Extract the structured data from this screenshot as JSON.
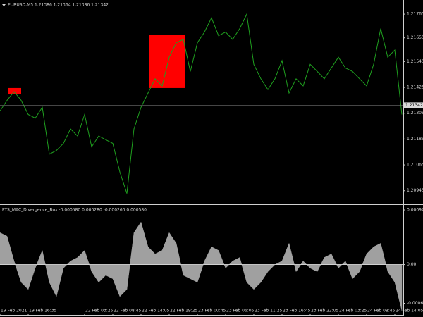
{
  "chart_data": [
    {
      "type": "line",
      "title": "EURUSD,M5  1.21386 1.21364 1.21386 1.21342",
      "color": "#1fa01f",
      "categories": [
        "19 Feb 2021",
        null,
        null,
        null,
        "19 Feb 16:35",
        null,
        null,
        null,
        null,
        null,
        null,
        null,
        "22 Feb 03:25",
        null,
        null,
        null,
        "22 Feb 08:45",
        null,
        null,
        null,
        "22 Feb 14:05",
        null,
        null,
        null,
        "22 Feb 19:25",
        null,
        null,
        null,
        "23 Feb 00:45",
        null,
        null,
        null,
        "23 Feb 06:05",
        null,
        null,
        null,
        "23 Feb 11:25",
        null,
        null,
        null,
        "23 Feb 16:45",
        null,
        null,
        null,
        "23 Feb 22:05",
        null,
        null,
        null,
        "24 Feb 03:25",
        null,
        null,
        null,
        "24 Feb 08:45",
        null,
        null,
        null,
        "24 Feb 14:05",
        null
      ],
      "values": [
        1.21315,
        1.21365,
        1.21405,
        1.21365,
        1.21299,
        1.21282,
        1.21332,
        1.21115,
        1.21132,
        1.21165,
        1.21232,
        1.21199,
        1.21299,
        1.21149,
        1.21199,
        1.21182,
        1.21165,
        1.21032,
        1.20932,
        1.21232,
        1.21332,
        1.21399,
        1.21465,
        1.21432,
        1.21565,
        1.21632,
        1.21648,
        1.21499,
        1.21632,
        1.21682,
        1.21748,
        1.21665,
        1.21682,
        1.21648,
        1.21698,
        1.21765,
        1.21532,
        1.21465,
        1.21415,
        1.21465,
        1.21549,
        1.21399,
        1.21465,
        1.21432,
        1.21532,
        1.21499,
        1.21465,
        1.21515,
        1.21565,
        1.21515,
        1.21499,
        1.21465,
        1.21432,
        1.21532,
        1.21698,
        1.21565,
        1.21598,
        1.21299
      ],
      "ylim": [
        1.20882,
        1.21798
      ],
      "yticks": [
        1.21765,
        1.21655,
        1.21545,
        1.21425,
        1.21305,
        1.21185,
        1.21065,
        1.20945
      ],
      "current_price": 1.21342,
      "boxes": [
        {
          "x": [
            1.2,
            3
          ],
          "y": [
            1.21395,
            1.21422
          ],
          "color": "#ff0000"
        },
        {
          "x": [
            21.2,
            26.2
          ],
          "y": [
            1.21422,
            1.21668
          ],
          "color": "#ff0000"
        }
      ]
    },
    {
      "type": "area",
      "title": "FTS_MAC_Divergence_Box -0.000580 0.000280 -0.000260 0.000580",
      "color": "#a0a0a0",
      "values": [
        0.00054,
        0.00048,
        6e-05,
        -0.0003,
        -0.00042,
        -6e-05,
        0.00024,
        -0.0003,
        -0.00054,
        -6e-05,
        6e-05,
        0.00012,
        0.00024,
        -0.00012,
        -0.0003,
        -0.00018,
        -0.00024,
        -0.00054,
        -0.00042,
        0.00054,
        0.00072,
        0.0003,
        0.00018,
        0.00024,
        0.00054,
        0.00036,
        -0.00018,
        -0.00024,
        -0.0003,
        6e-05,
        0.0003,
        0.00024,
        -6e-05,
        6e-05,
        0.00012,
        -0.0003,
        -0.00042,
        -0.0003,
        -0.00012,
        0,
        6e-05,
        0.00036,
        -0.00012,
        6e-05,
        -6e-05,
        -0.00012,
        0.00012,
        0.00018,
        -6e-05,
        6e-05,
        -0.00024,
        -0.00012,
        0.00018,
        0.0003,
        0.00036,
        -0.00012,
        -0.0003,
        -0.00078
      ],
      "ylim": [
        -0.00084,
        0.000997
      ],
      "yticks": [
        0.000925,
        {
          "value": 0,
          "label": "0.00"
        },
        -0.000655
      ]
    }
  ]
}
